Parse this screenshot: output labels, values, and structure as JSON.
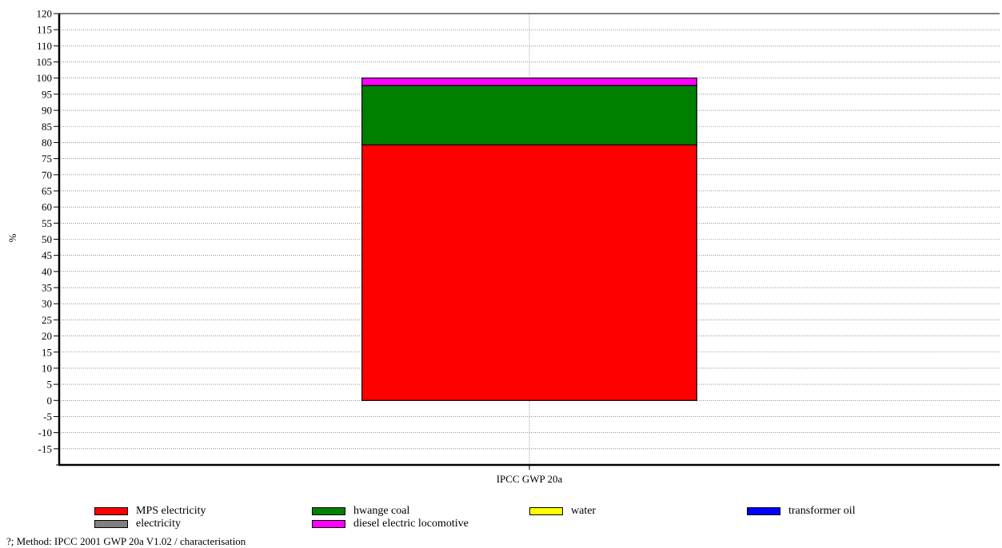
{
  "chart_data": {
    "type": "bar",
    "stacked": true,
    "categories": [
      "IPCC GWP 20a"
    ],
    "ylabel": "%",
    "xlabel": "",
    "ylim": [
      -20,
      120
    ],
    "ytick_step": 5,
    "grid": true,
    "legend_placement": "bottom",
    "series": [
      {
        "name": "MPS electricity",
        "color": "#ff0000",
        "values": [
          79.3
        ]
      },
      {
        "name": "hwange coal",
        "color": "#008000",
        "values": [
          18.4
        ]
      },
      {
        "name": "water",
        "color": "#ffff00",
        "values": [
          0.0
        ]
      },
      {
        "name": "transformer oil",
        "color": "#0000ff",
        "values": [
          0.0
        ]
      },
      {
        "name": "electricity",
        "color": "#808080",
        "values": [
          0.0
        ]
      },
      {
        "name": "diesel electric locomotive",
        "color": "#ff00ff",
        "values": [
          2.3
        ]
      }
    ]
  },
  "footer": {
    "method_text": "?; Method: IPCC 2001 GWP 20a V1.02 / characterisation"
  }
}
